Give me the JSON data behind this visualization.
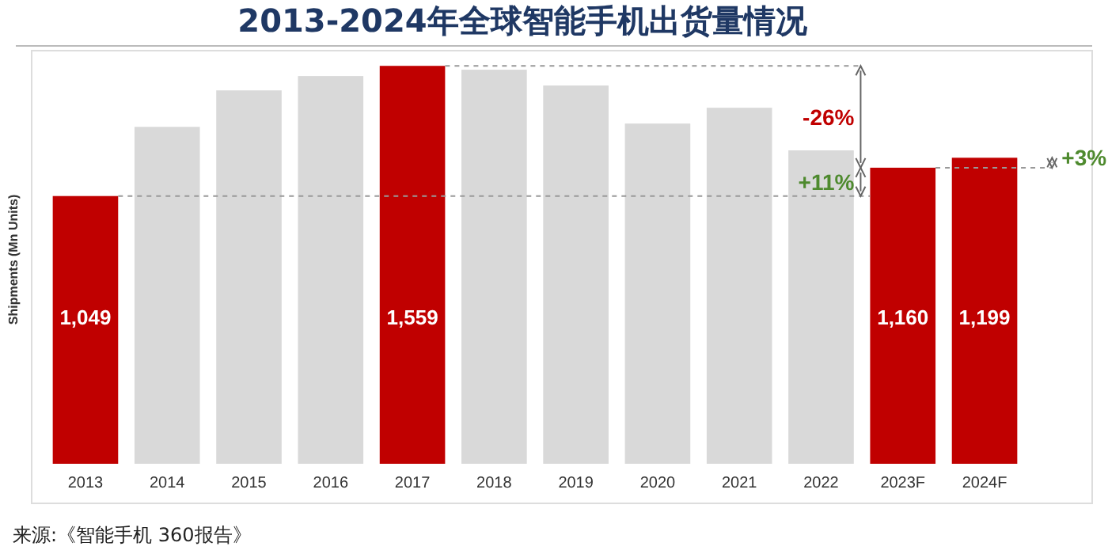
{
  "chart_data": {
    "type": "bar",
    "title": "2013-2024年全球智能手机出货量情况",
    "ylabel": "Shipments (Mn Units)",
    "categories": [
      "2013",
      "2014",
      "2015",
      "2016",
      "2017",
      "2018",
      "2019",
      "2020",
      "2021",
      "2022",
      "2023F",
      "2024F"
    ],
    "values": [
      1049,
      1320,
      1463,
      1519,
      1559,
      1544,
      1482,
      1333,
      1395,
      1228,
      1160,
      1199
    ],
    "colors": [
      "#c00000",
      "#d9d9d9",
      "#d9d9d9",
      "#d9d9d9",
      "#c00000",
      "#d9d9d9",
      "#d9d9d9",
      "#d9d9d9",
      "#d9d9d9",
      "#d9d9d9",
      "#c00000",
      "#c00000"
    ],
    "value_labels": [
      "1,049",
      null,
      null,
      null,
      "1,559",
      null,
      null,
      null,
      null,
      null,
      "1,160",
      "1,199"
    ],
    "ylim": [
      0,
      1600
    ],
    "annotations": [
      "-26%",
      "+11%",
      "+3%",
      "来源:《智能手机 360报告》"
    ]
  }
}
